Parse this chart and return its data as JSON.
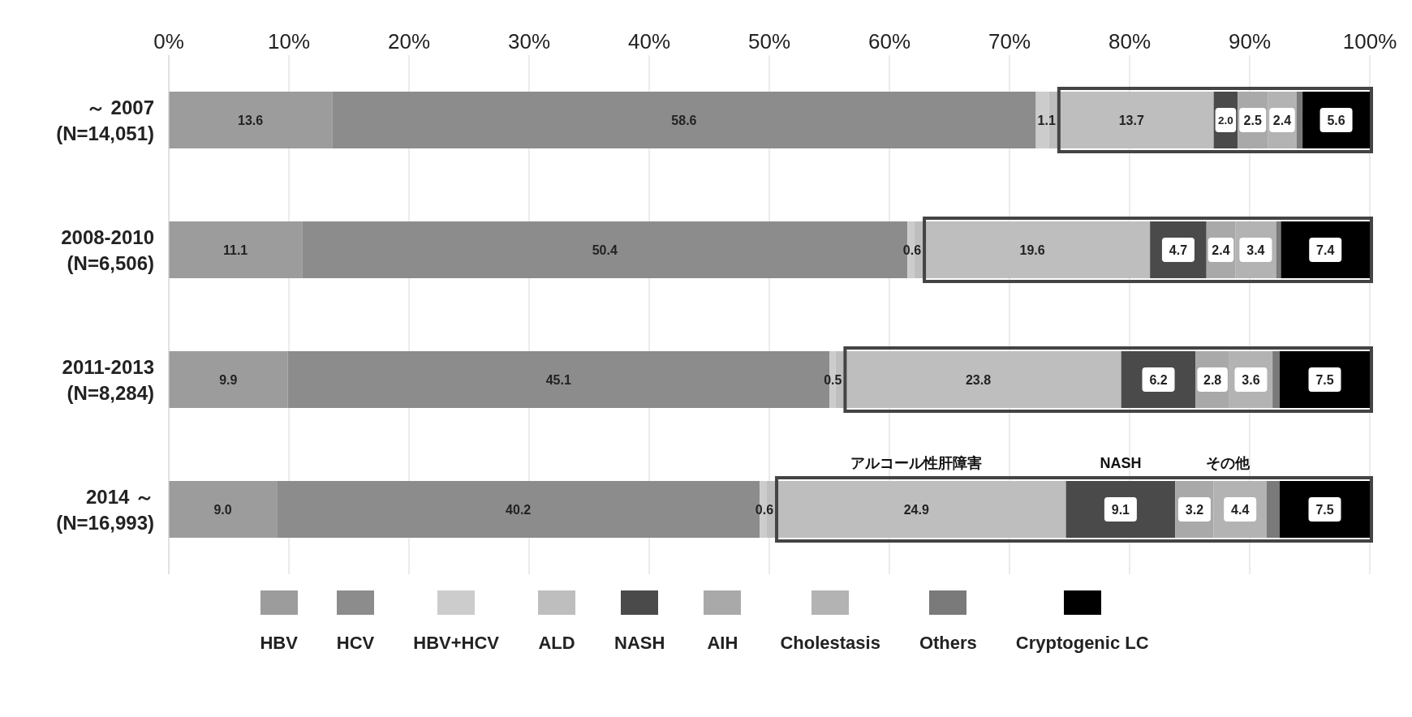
{
  "chart_data": {
    "type": "bar",
    "orientation": "horizontal",
    "stacked": true,
    "categories": [
      "～ 2007\n(N=14,051)",
      "2008-2010\n(N=6,506)",
      "2011-2013\n(N=8,284)",
      "2014 ～\n(N=16,993)"
    ],
    "series": [
      {
        "name": "HBV",
        "color": "#9c9c9c",
        "values": [
          13.6,
          11.1,
          9.9,
          9.0
        ],
        "value_labels": [
          "13.6",
          "11.1",
          "9.9",
          "9.0"
        ]
      },
      {
        "name": "HCV",
        "color": "#8c8c8c",
        "values": [
          58.6,
          50.4,
          45.1,
          40.2
        ],
        "value_labels": [
          "58.6",
          "50.4",
          "45.1",
          "40.2"
        ]
      },
      {
        "name": "HBV+HCV",
        "color": "#cccccc",
        "values": [
          1.1,
          0.6,
          0.5,
          0.6
        ],
        "value_labels": [
          "1.1",
          "0.6",
          "0.5",
          "0.6"
        ]
      },
      {
        "name": "ALD",
        "color": "#bebebe",
        "values": [
          13.7,
          19.6,
          23.8,
          24.9
        ],
        "value_labels": [
          "13.7",
          "19.6",
          "23.8",
          "24.9"
        ]
      },
      {
        "name": "NASH",
        "color": "#4a4a4a",
        "values": [
          2.0,
          4.7,
          6.2,
          9.1
        ],
        "value_labels": [
          "2.0",
          "4.7",
          "6.2",
          "9.1"
        ]
      },
      {
        "name": "AIH",
        "color": "#a9a9a9",
        "values": [
          2.5,
          2.4,
          2.8,
          3.2
        ],
        "value_labels": [
          "2.5",
          "2.4",
          "2.8",
          "3.2"
        ]
      },
      {
        "name": "Cholestasis",
        "color": "#b3b3b3",
        "values": [
          2.4,
          3.4,
          3.6,
          4.4
        ],
        "value_labels": [
          "2.4",
          "3.4",
          "3.6",
          "4.4"
        ]
      },
      {
        "name": "Others",
        "color": "#7a7a7a",
        "values": [
          0.5,
          0.4,
          0.6,
          1.1
        ],
        "value_labels": [
          null,
          null,
          null,
          null
        ]
      },
      {
        "name": "Cryptogenic LC",
        "color": "#000000",
        "values": [
          5.6,
          7.4,
          7.5,
          7.5
        ],
        "value_labels": [
          "5.6",
          "7.4",
          "7.5",
          "7.5"
        ]
      }
    ],
    "xlim": [
      0,
      100
    ],
    "xticks": [
      {
        "value": 0,
        "label": "0%"
      },
      {
        "value": 10,
        "label": "10%"
      },
      {
        "value": 20,
        "label": "20%"
      },
      {
        "value": 30,
        "label": "30%"
      },
      {
        "value": 40,
        "label": "40%"
      },
      {
        "value": 50,
        "label": "50%"
      },
      {
        "value": 60,
        "label": "60%"
      },
      {
        "value": 70,
        "label": "70%"
      },
      {
        "value": 80,
        "label": "80%"
      },
      {
        "value": 90,
        "label": "90%"
      },
      {
        "value": 100,
        "label": "100%"
      }
    ],
    "grid": "x",
    "legend": "bottom",
    "annotations": [
      "アルコール性肝障害",
      "NASH",
      "その他"
    ]
  }
}
